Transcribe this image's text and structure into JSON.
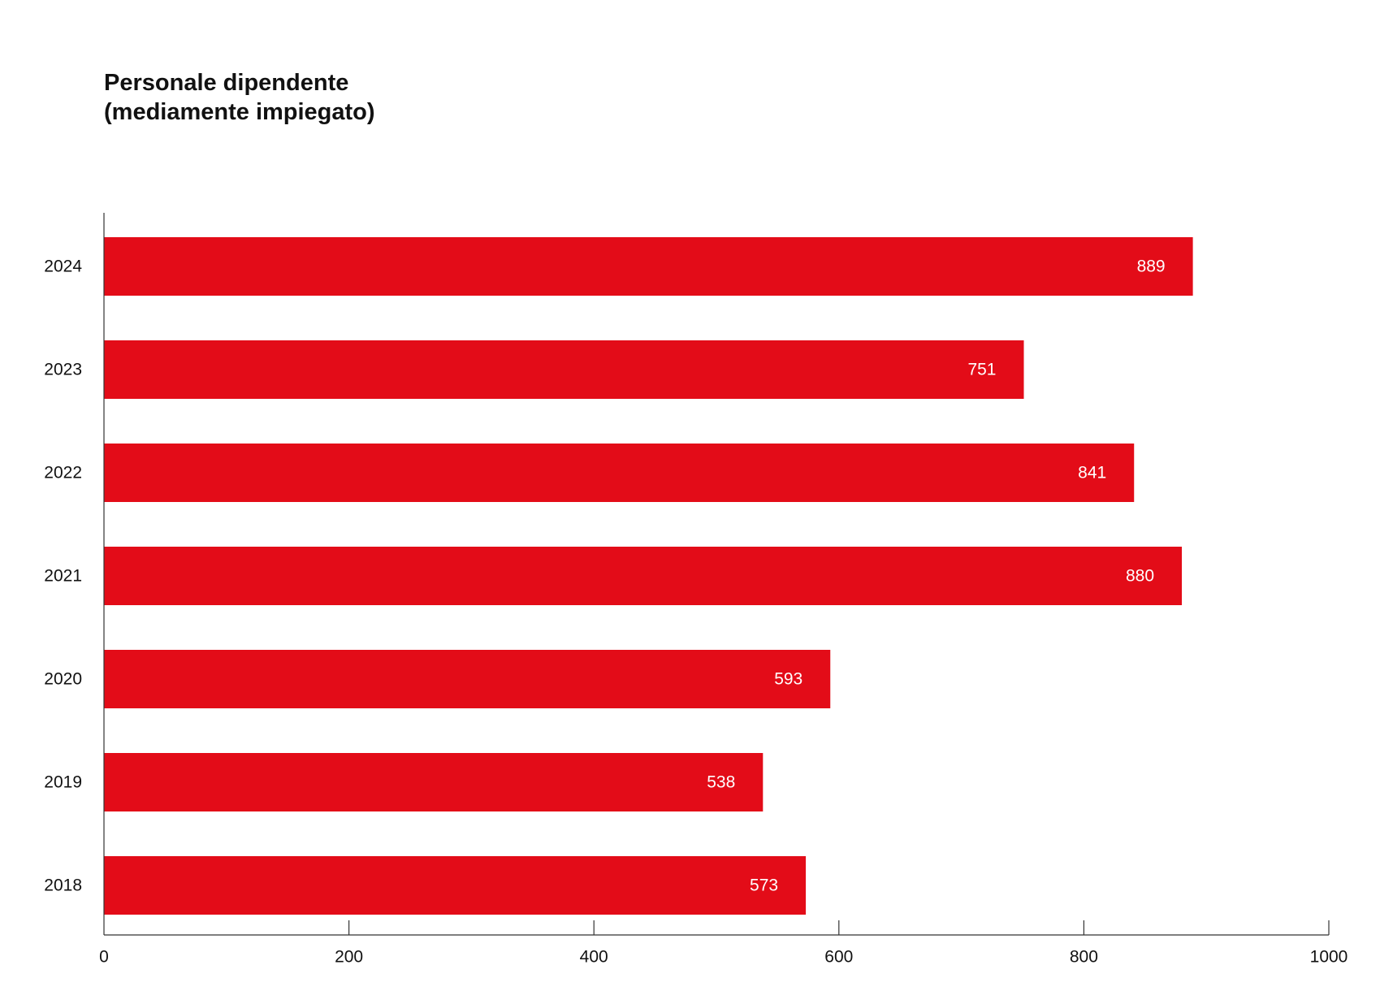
{
  "colors": {
    "bar": "#e30c18",
    "axis": "#333333",
    "text": "#111111",
    "bar_label": "#ffffff"
  },
  "chart_data": {
    "type": "bar",
    "orientation": "horizontal",
    "title_lines": [
      "Personale dipendente",
      "(mediamente impiegato)"
    ],
    "categories": [
      "2024",
      "2023",
      "2022",
      "2021",
      "2020",
      "2019",
      "2018"
    ],
    "values": [
      889,
      751,
      841,
      880,
      593,
      538,
      573
    ],
    "xlim": [
      0,
      1000
    ],
    "xticks": [
      0,
      200,
      400,
      600,
      800,
      1000
    ],
    "grid": false,
    "legend": "none"
  }
}
